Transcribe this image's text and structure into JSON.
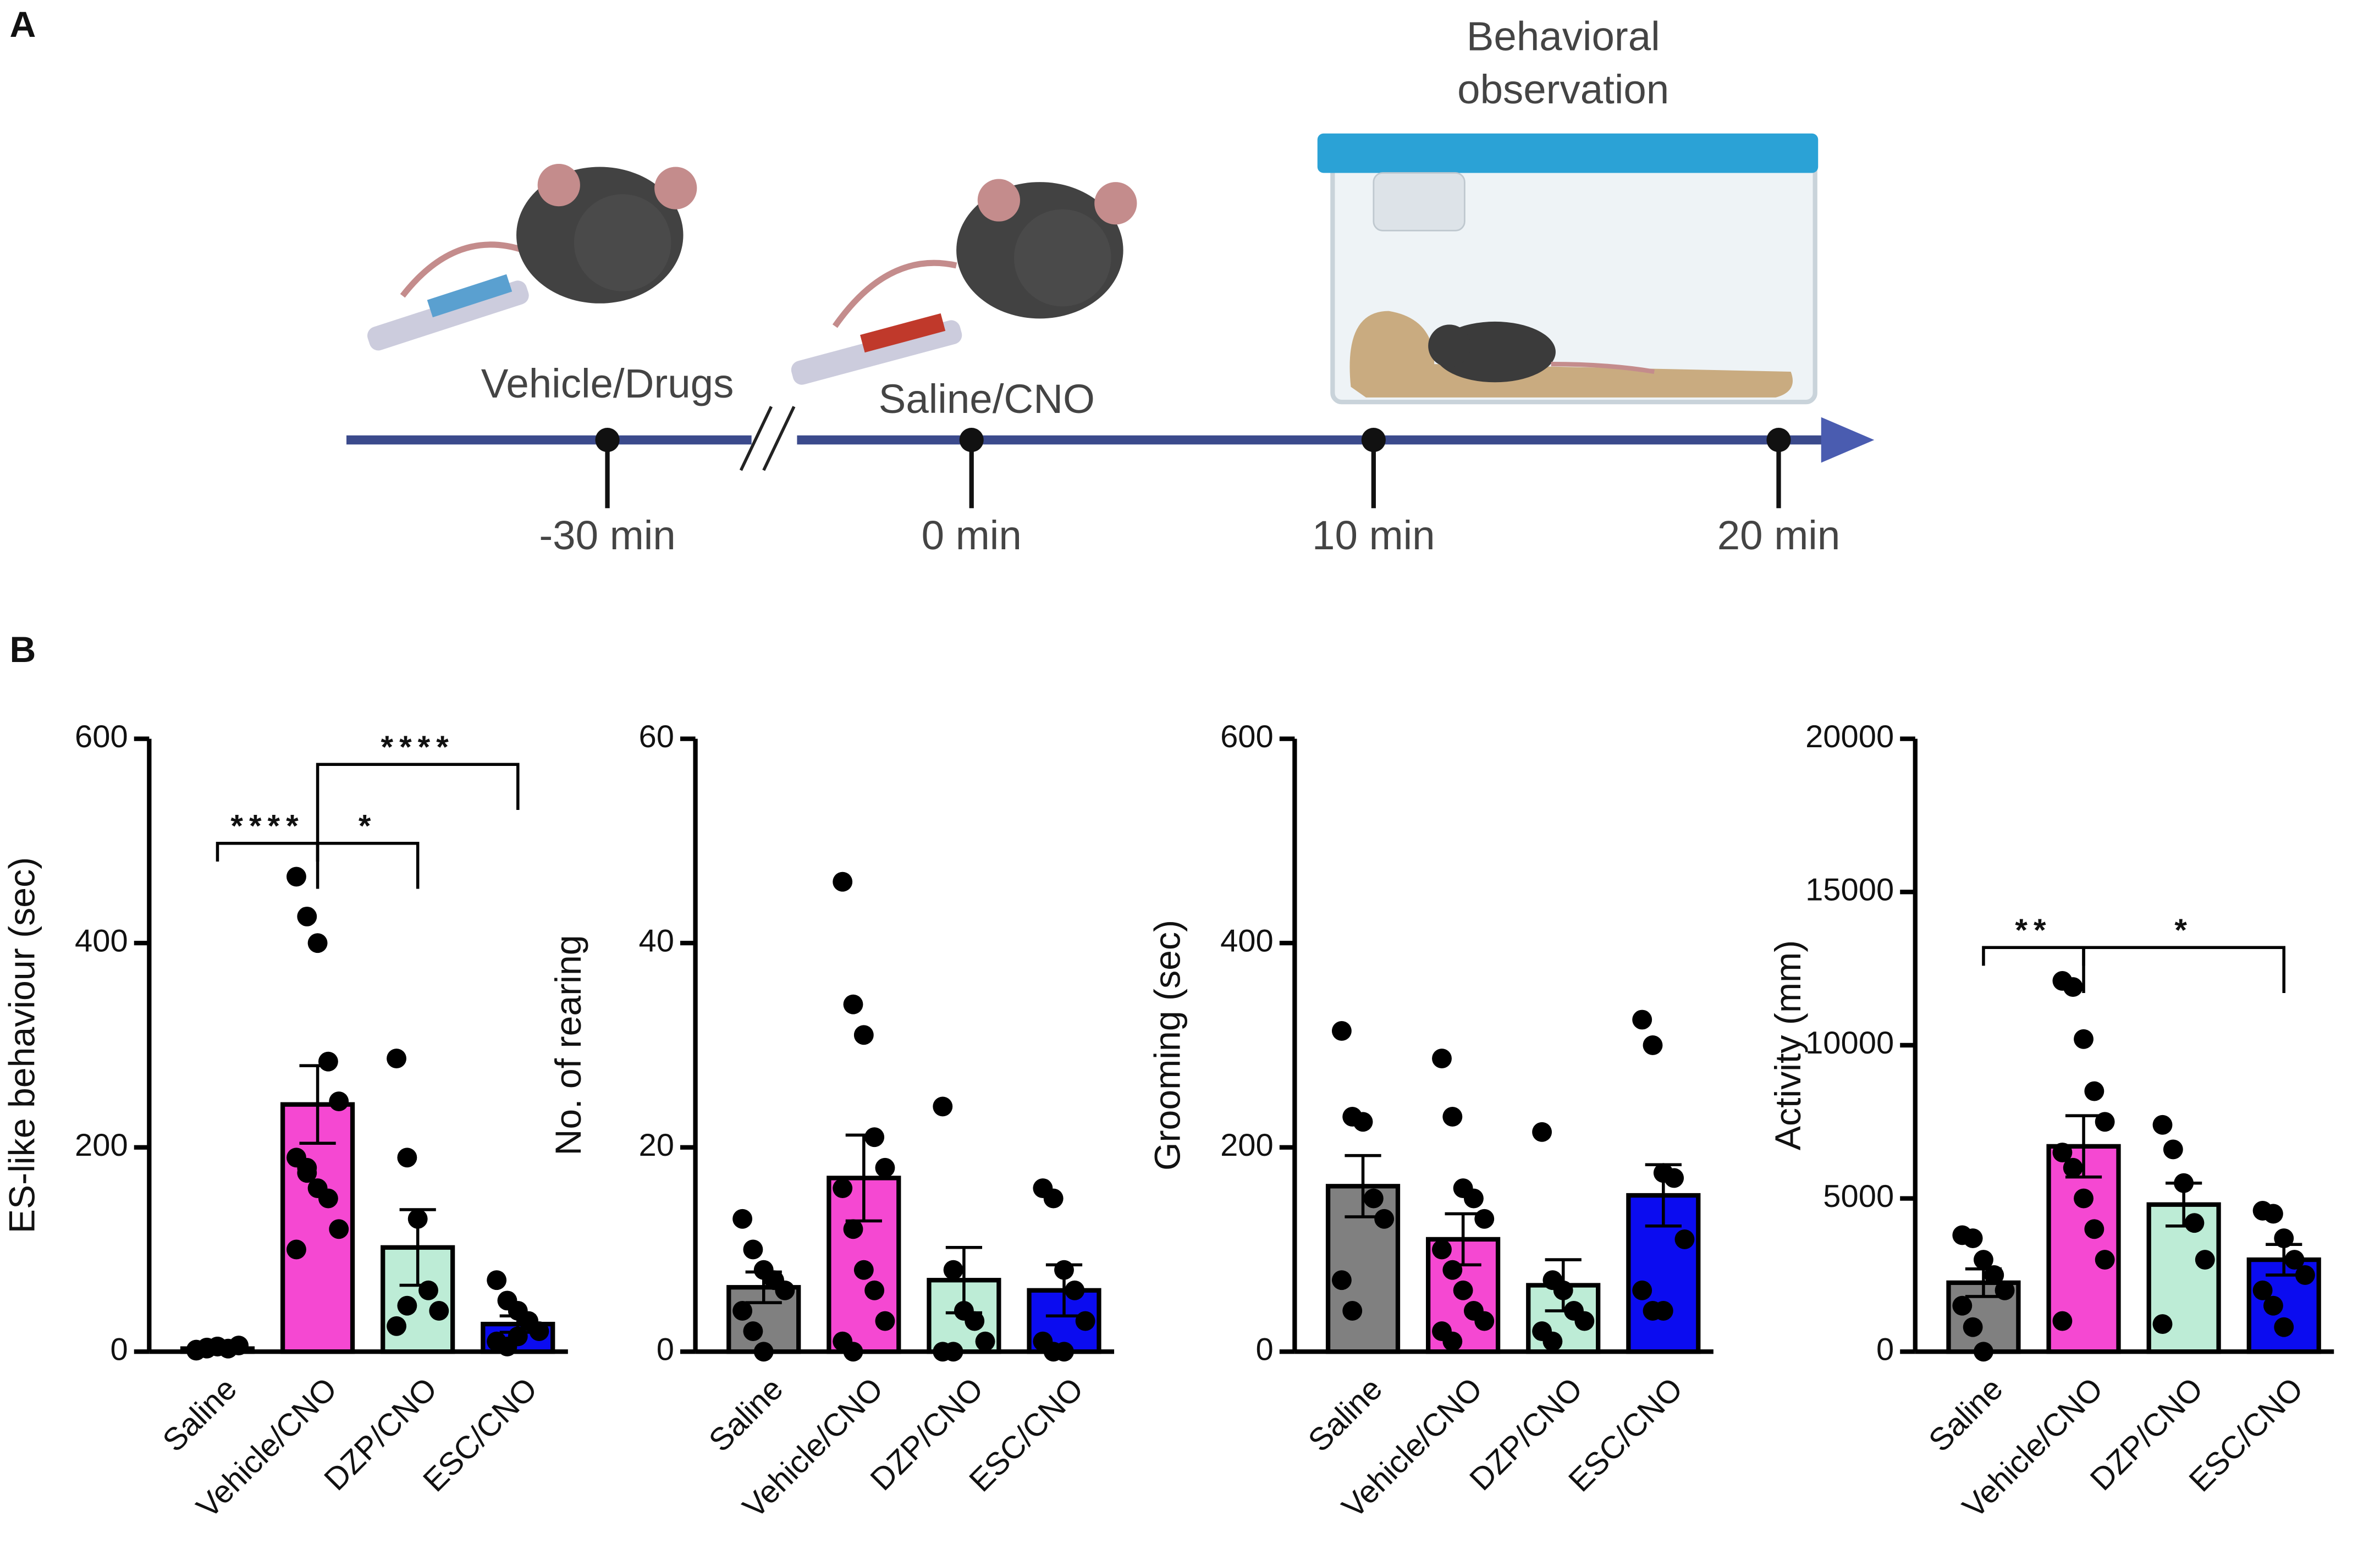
{
  "panels": [
    "A",
    "B"
  ],
  "diagram": {
    "observation": [
      "Behavioral",
      "observation"
    ],
    "first_injection": "Vehicle/Drugs",
    "second_injection": "Saline/CNO",
    "timepoints": [
      "-30 min",
      "0 min",
      "10 min",
      "20 min"
    ]
  },
  "chart_data": [
    {
      "type": "bar",
      "ylabel": "ES-like behaviour (sec)",
      "categories": [
        "Saline",
        "Vehicle/CNO",
        "DZP/CNO",
        "ESC/CNO"
      ],
      "colors": [
        "#808080",
        "#f548d2",
        "#bdecd6",
        "#0b0cf0"
      ],
      "values": [
        3,
        242,
        102,
        27
      ],
      "errors": [
        1,
        38,
        37,
        8
      ],
      "points": [
        [
          2,
          4,
          5,
          3,
          6,
          1,
          3,
          5
        ],
        [
          465,
          426,
          400,
          284,
          245,
          190,
          175,
          160,
          150,
          120,
          100,
          180
        ],
        [
          287,
          190,
          130,
          60,
          40,
          25,
          45
        ],
        [
          70,
          50,
          40,
          30,
          20,
          10,
          5,
          15
        ]
      ],
      "ylim": [
        0,
        600
      ],
      "yticks": [
        0,
        200,
        400,
        600
      ],
      "annotations": [
        {
          "pair": [
            "Saline",
            "Vehicle/CNO"
          ],
          "label": "****"
        },
        {
          "pair": [
            "Vehicle/CNO",
            "DZP/CNO"
          ],
          "label": "*"
        },
        {
          "pair": [
            "Vehicle/CNO",
            "ESC/CNO"
          ],
          "label": "****"
        }
      ]
    },
    {
      "type": "bar",
      "ylabel": "No. of rearing",
      "categories": [
        "Saline",
        "Vehicle/CNO",
        "DZP/CNO",
        "ESC/CNO"
      ],
      "colors": [
        "#808080",
        "#f548d2",
        "#bdecd6",
        "#0b0cf0"
      ],
      "values": [
        6.3,
        17,
        7,
        6
      ],
      "errors": [
        1.5,
        4.2,
        3.2,
        2.5
      ],
      "points": [
        [
          13,
          10,
          8,
          7,
          6,
          4,
          2,
          0
        ],
        [
          46,
          34,
          31,
          21,
          18,
          16,
          12,
          8,
          6,
          3,
          1,
          0
        ],
        [
          24,
          8,
          4,
          3,
          1,
          0,
          0
        ],
        [
          16,
          15,
          8,
          6,
          3,
          1,
          0,
          0
        ]
      ],
      "ylim": [
        0,
        60
      ],
      "yticks": [
        0,
        20,
        40,
        60
      ],
      "annotations": []
    },
    {
      "type": "bar",
      "ylabel": "Grooming (sec)",
      "categories": [
        "Saline",
        "Vehicle/CNO",
        "DZP/CNO",
        "ESC/CNO"
      ],
      "colors": [
        "#808080",
        "#f548d2",
        "#bdecd6",
        "#0b0cf0"
      ],
      "values": [
        162,
        110,
        65,
        153
      ],
      "errors": [
        30,
        25,
        25,
        30
      ],
      "points": [
        [
          314,
          230,
          225,
          150,
          130,
          70,
          40
        ],
        [
          287,
          230,
          160,
          150,
          130,
          100,
          80,
          60,
          40,
          30,
          20,
          10
        ],
        [
          215,
          70,
          60,
          40,
          30,
          20,
          10
        ],
        [
          325,
          300,
          175,
          170,
          110,
          60,
          40,
          40
        ]
      ],
      "ylim": [
        0,
        600
      ],
      "yticks": [
        0,
        200,
        400,
        600
      ],
      "annotations": []
    },
    {
      "type": "bar",
      "ylabel": "Activity (mm)",
      "categories": [
        "Saline",
        "Vehicle/CNO",
        "DZP/CNO",
        "ESC/CNO"
      ],
      "colors": [
        "#808080",
        "#f548d2",
        "#bdecd6",
        "#0b0cf0"
      ],
      "values": [
        2250,
        6700,
        4800,
        3000
      ],
      "errors": [
        450,
        1000,
        700,
        500
      ],
      "points": [
        [
          3800,
          3700,
          3000,
          2500,
          2000,
          1500,
          800,
          0
        ],
        [
          12100,
          11900,
          10200,
          8500,
          7500,
          6500,
          6000,
          5000,
          4000,
          3000,
          1000
        ],
        [
          7400,
          6600,
          5500,
          4200,
          3000,
          900
        ],
        [
          4600,
          4500,
          3700,
          3000,
          2500,
          2000,
          1500,
          800
        ]
      ],
      "ylim": [
        0,
        20000
      ],
      "yticks": [
        0,
        5000,
        10000,
        15000,
        20000
      ],
      "annotations": [
        {
          "pair": [
            "Saline",
            "Vehicle/CNO"
          ],
          "label": "**"
        },
        {
          "pair": [
            "Vehicle/CNO",
            "ESC/CNO"
          ],
          "label": "*"
        }
      ]
    }
  ]
}
